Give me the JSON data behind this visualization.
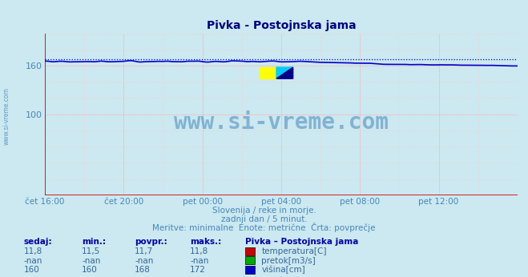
{
  "title": "Pivka - Postojnska jama",
  "bg_color": "#cce8f0",
  "plot_bg_color": "#cce8f0",
  "grid_color_major": "#ff9999",
  "grid_color_minor": "#ffcccc",
  "axis_color": "#cc0000",
  "line_color_visina": "#0000cc",
  "line_color_dotted": "#0000cc",
  "watermark_text": "www.si-vreme.com",
  "watermark_color": "#4488bb",
  "xlabel_color": "#4488bb",
  "ylabel_color": "#4488bb",
  "title_color": "#000080",
  "yticks": [
    100,
    160
  ],
  "ylim": [
    0,
    200
  ],
  "xlim_start": 0,
  "xlim_end": 288,
  "xtick_labels": [
    "čet 16:00",
    "čet 20:00",
    "pet 00:00",
    "pet 04:00",
    "pet 08:00",
    "pet 12:00"
  ],
  "xtick_positions": [
    0,
    48,
    96,
    144,
    192,
    240
  ],
  "subtitle1": "Slovenija / reke in morje.",
  "subtitle2": "zadnji dan / 5 minut.",
  "subtitle3": "Meritve: minimalne  Enote: metrične  Črta: povprečje",
  "table_headers": [
    "sedaj:",
    "min.:",
    "povpr.:",
    "maks.:"
  ],
  "row1": [
    "11,8",
    "11,5",
    "11,7",
    "11,8"
  ],
  "row2": [
    "-nan",
    "-nan",
    "-nan",
    "-nan"
  ],
  "row3": [
    "160",
    "160",
    "168",
    "172"
  ],
  "legend_title": "Pivka – Postojnska jama",
  "legend_items": [
    {
      "label": "temperatura[C]",
      "color": "#cc0000"
    },
    {
      "label": "pretok[m3/s]",
      "color": "#00aa00"
    },
    {
      "label": "višina[cm]",
      "color": "#0000cc"
    }
  ],
  "visina_avg": 168
}
